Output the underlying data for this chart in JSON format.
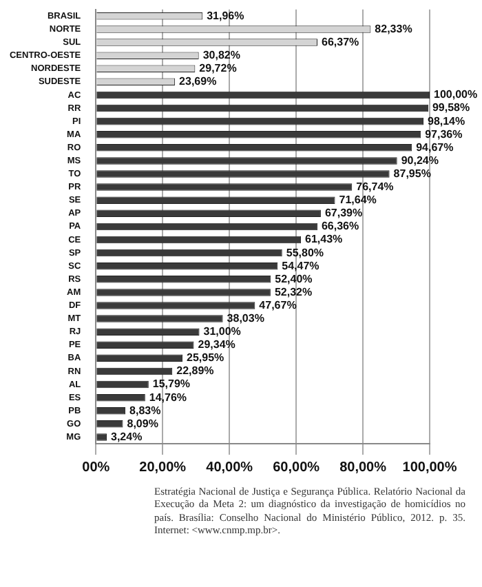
{
  "chart_data": {
    "type": "bar",
    "orientation": "horizontal",
    "categories": [
      "BRASIL",
      "NORTE",
      "SUL",
      "CENTRO-OESTE",
      "NORDESTE",
      "SUDESTE",
      "AC",
      "RR",
      "PI",
      "MA",
      "RO",
      "MS",
      "TO",
      "PR",
      "SE",
      "AP",
      "PA",
      "CE",
      "SP",
      "SC",
      "RS",
      "AM",
      "DF",
      "MT",
      "RJ",
      "PE",
      "BA",
      "RN",
      "AL",
      "ES",
      "PB",
      "GO",
      "MG"
    ],
    "values": [
      31.96,
      82.33,
      66.37,
      30.82,
      29.72,
      23.69,
      100,
      99.58,
      98.14,
      97.36,
      94.67,
      90.24,
      87.95,
      76.74,
      71.64,
      67.39,
      66.36,
      61.43,
      55.8,
      54.47,
      52.4,
      52.32,
      47.67,
      38.03,
      31,
      29.34,
      25.95,
      22.89,
      15.79,
      14.76,
      8.83,
      8.09,
      3.24
    ],
    "colors": [
      "#d4d4d4",
      "#d4d4d4",
      "#d4d4d4",
      "#d4d4d4",
      "#d4d4d4",
      "#d4d4d4",
      "#3a3a3a",
      "#3a3a3a",
      "#3a3a3a",
      "#3a3a3a",
      "#3a3a3a",
      "#3a3a3a",
      "#3a3a3a",
      "#3a3a3a",
      "#3a3a3a",
      "#3a3a3a",
      "#3a3a3a",
      "#3a3a3a",
      "#3a3a3a",
      "#3a3a3a",
      "#3a3a3a",
      "#3a3a3a",
      "#3a3a3a",
      "#3a3a3a",
      "#3a3a3a",
      "#3a3a3a",
      "#3a3a3a",
      "#3a3a3a",
      "#3a3a3a",
      "#3a3a3a",
      "#3a3a3a",
      "#3a3a3a",
      "#3a3a3a"
    ],
    "value_labels": [
      "31,96%",
      "82,33%",
      "66,37%",
      "30,82%",
      "29,72%",
      "23,69%",
      "100,00%",
      "99,58%",
      "98,14%",
      "97,36%",
      "94,67%",
      "90,24%",
      "87,95%",
      "76,74%",
      "71,64%",
      "67,39%",
      "66,36%",
      "61,43%",
      "55,80%",
      "54,47%",
      "52,40%",
      "52,32%",
      "47,67%",
      "38,03%",
      "31,00%",
      "29,34%",
      "25,95%",
      "22,89%",
      "15,79%",
      "14,76%",
      "8,83%",
      "8,09%",
      "3,24%"
    ],
    "xlim": [
      0,
      100
    ],
    "xticks": [
      {
        "value": 0,
        "label": "00%"
      },
      {
        "value": 20,
        "label": "20,00%"
      },
      {
        "value": 40,
        "label": "40,00%"
      },
      {
        "value": 60,
        "label": "60,00%"
      },
      {
        "value": 80,
        "label": "80,00%"
      },
      {
        "value": 100,
        "label": "100,00%"
      }
    ],
    "grid": "x",
    "legend": false,
    "annotations": [
      "Estratégia Nacional de Justiça e Segurança Pública. Relatório Nacional da Execução da Meta 2: um diagnóstico da investigação de homicídios no país. Brasília: Conselho Nacional do Ministério Público, 2012. p. 35. Internet: <www.cnmp.mp.br>."
    ]
  }
}
